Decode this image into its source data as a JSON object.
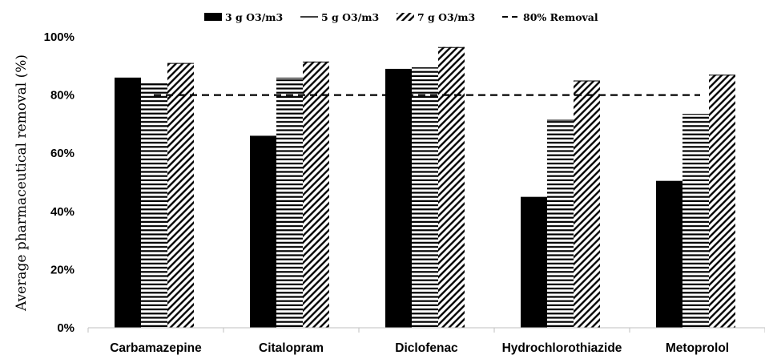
{
  "chart_data": {
    "type": "bar",
    "title": "",
    "xlabel": "",
    "ylabel": "Average pharmaceutical removal (%)",
    "ylim": [
      0,
      100
    ],
    "yticks": [
      "0%",
      "20%",
      "40%",
      "60%",
      "80%",
      "100%"
    ],
    "categories": [
      "Carbamazepine",
      "Citalopram",
      "Diclofenac",
      "Hydrochlorothiazide",
      "Metoprolol"
    ],
    "series": [
      {
        "name": "3 g O3/m3",
        "pattern": "solid",
        "values": [
          86,
          66,
          89,
          45,
          50.5
        ]
      },
      {
        "name": "5 g O3/m3",
        "pattern": "horizontal-lines",
        "values": [
          84,
          86,
          89.5,
          71.5,
          73.5
        ]
      },
      {
        "name": "7 g O3/m3",
        "pattern": "diagonal-hatch",
        "values": [
          91,
          91.5,
          96.5,
          85,
          87
        ]
      }
    ],
    "reference_line": {
      "name": "80% Removal",
      "value": 80,
      "style": "dashed"
    },
    "grid": false,
    "legend_position": "top",
    "colors": {
      "bar": "#000000",
      "background": "#ffffff",
      "axis": "#bfbfbf"
    }
  }
}
